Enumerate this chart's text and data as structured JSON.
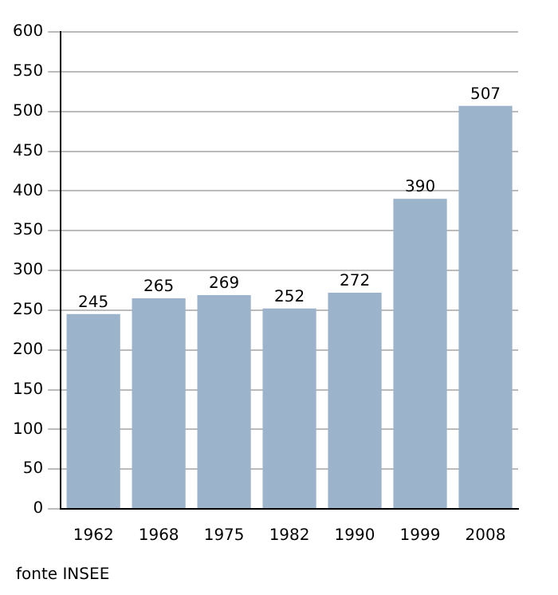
{
  "chart_data": {
    "type": "bar",
    "categories": [
      "1962",
      "1968",
      "1975",
      "1982",
      "1990",
      "1999",
      "2008"
    ],
    "values": [
      245,
      265,
      269,
      252,
      272,
      390,
      507
    ],
    "color": "#9bb4cc",
    "data_labels": true,
    "ylim": [
      0,
      600
    ],
    "yticks": [
      0,
      50,
      100,
      150,
      200,
      250,
      300,
      350,
      400,
      450,
      500,
      550,
      600
    ],
    "grid": "y",
    "legend": false,
    "annotations": [
      "fonte INSEE"
    ]
  }
}
